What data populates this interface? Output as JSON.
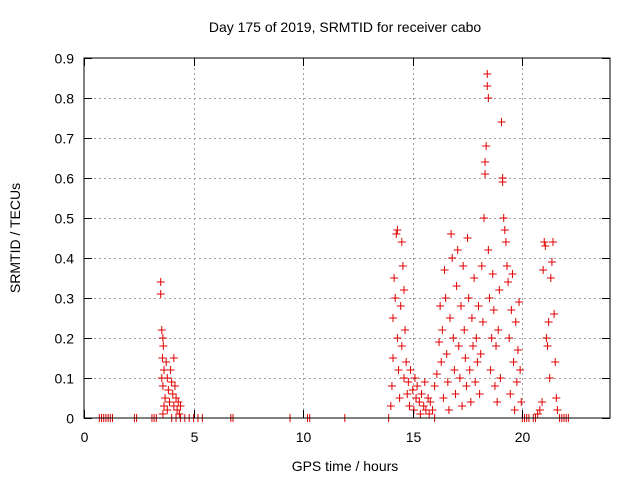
{
  "chart_data": {
    "type": "scatter",
    "title": "Day 175 of 2019, SRMTID for receiver cabo",
    "xlabel": "GPS time / hours",
    "ylabel": "SRMTID / TECUs",
    "xlim": [
      0,
      24
    ],
    "ylim": [
      0,
      0.9
    ],
    "x_ticks": [
      0,
      5,
      10,
      15,
      20
    ],
    "x_tick_labels": [
      "0",
      "5",
      "10",
      "15",
      "20"
    ],
    "y_ticks": [
      0,
      0.1,
      0.2,
      0.3,
      0.4,
      0.5,
      0.6,
      0.7,
      0.8,
      0.9
    ],
    "y_tick_labels": [
      "0",
      "0.1",
      "0.2",
      "0.3",
      "0.4",
      "0.5",
      "0.6",
      "0.7",
      "0.8",
      "0.9"
    ],
    "grid": true,
    "marker": "+",
    "marker_color": "#e00000",
    "series": [
      {
        "name": "SRMTID",
        "points": [
          [
            0.7,
            0
          ],
          [
            0.8,
            0
          ],
          [
            0.9,
            0
          ],
          [
            1.0,
            0
          ],
          [
            1.1,
            0
          ],
          [
            1.2,
            0
          ],
          [
            1.3,
            0
          ],
          [
            2.3,
            0
          ],
          [
            2.4,
            0
          ],
          [
            3.1,
            0
          ],
          [
            3.2,
            0
          ],
          [
            3.3,
            0
          ],
          [
            3.5,
            0.34
          ],
          [
            3.5,
            0.31
          ],
          [
            3.55,
            0.22
          ],
          [
            3.6,
            0.2
          ],
          [
            3.62,
            0.18
          ],
          [
            3.58,
            0.15
          ],
          [
            3.65,
            0.12
          ],
          [
            3.55,
            0.1
          ],
          [
            3.6,
            0.08
          ],
          [
            3.7,
            0.05
          ],
          [
            3.65,
            0.03
          ],
          [
            3.6,
            0.01
          ],
          [
            3.75,
            0.14
          ],
          [
            3.8,
            0.1
          ],
          [
            3.85,
            0.07
          ],
          [
            3.9,
            0.04
          ],
          [
            3.8,
            0.02
          ],
          [
            3.95,
            0.12
          ],
          [
            4.0,
            0.09
          ],
          [
            4.05,
            0.06
          ],
          [
            4.1,
            0.15
          ],
          [
            4.1,
            0.03
          ],
          [
            4.15,
            0.08
          ],
          [
            4.2,
            0.05
          ],
          [
            4.25,
            0.02
          ],
          [
            4.3,
            0.04
          ],
          [
            4.35,
            0.01
          ],
          [
            4.4,
            0.03
          ],
          [
            4.0,
            0.0
          ],
          [
            4.2,
            0.0
          ],
          [
            4.4,
            0.0
          ],
          [
            4.6,
            0
          ],
          [
            4.8,
            0
          ],
          [
            5.0,
            0
          ],
          [
            5.2,
            0
          ],
          [
            5.4,
            0
          ],
          [
            6.7,
            0
          ],
          [
            6.8,
            0
          ],
          [
            9.4,
            0
          ],
          [
            10.2,
            0
          ],
          [
            10.3,
            0
          ],
          [
            11.9,
            0
          ],
          [
            13.9,
            0
          ],
          [
            14.0,
            0.03
          ],
          [
            14.05,
            0.08
          ],
          [
            14.1,
            0.15
          ],
          [
            14.1,
            0.25
          ],
          [
            14.15,
            0.35
          ],
          [
            14.2,
            0.3
          ],
          [
            14.25,
            0.46
          ],
          [
            14.3,
            0.47
          ],
          [
            14.3,
            0.2
          ],
          [
            14.35,
            0.12
          ],
          [
            14.4,
            0.05
          ],
          [
            14.45,
            0.28
          ],
          [
            14.5,
            0.44
          ],
          [
            14.5,
            0.18
          ],
          [
            14.55,
            0.38
          ],
          [
            14.6,
            0.32
          ],
          [
            14.6,
            0.1
          ],
          [
            14.65,
            0.22
          ],
          [
            14.7,
            0.14
          ],
          [
            14.75,
            0.06
          ],
          [
            14.8,
            0.09
          ],
          [
            14.85,
            0.03
          ],
          [
            14.9,
            0.12
          ],
          [
            15.0,
            0.07
          ],
          [
            15.05,
            0.02
          ],
          [
            15.1,
            0.1
          ],
          [
            15.15,
            0.05
          ],
          [
            15.2,
            0.08
          ],
          [
            15.3,
            0.04
          ],
          [
            15.35,
            0.01
          ],
          [
            15.4,
            0.06
          ],
          [
            15.5,
            0.03
          ],
          [
            15.55,
            0.09
          ],
          [
            15.6,
            0.02
          ],
          [
            15.7,
            0.05
          ],
          [
            15.75,
            0.01
          ],
          [
            15.8,
            0.04
          ],
          [
            15.9,
            0.02
          ],
          [
            16.0,
            0.0
          ],
          [
            16.0,
            0.08
          ],
          [
            16.1,
            0.11
          ],
          [
            16.2,
            0.19
          ],
          [
            16.25,
            0.28
          ],
          [
            16.3,
            0.14
          ],
          [
            16.35,
            0.22
          ],
          [
            16.4,
            0.05
          ],
          [
            16.45,
            0.37
          ],
          [
            16.5,
            0.3
          ],
          [
            16.55,
            0.16
          ],
          [
            16.6,
            0.09
          ],
          [
            16.65,
            0.02
          ],
          [
            16.7,
            0.25
          ],
          [
            16.75,
            0.46
          ],
          [
            16.8,
            0.4
          ],
          [
            16.85,
            0.2
          ],
          [
            16.9,
            0.12
          ],
          [
            16.95,
            0.06
          ],
          [
            17.0,
            0.33
          ],
          [
            17.05,
            0.42
          ],
          [
            17.1,
            0.18
          ],
          [
            17.15,
            0.1
          ],
          [
            17.2,
            0.28
          ],
          [
            17.25,
            0.03
          ],
          [
            17.3,
            0.38
          ],
          [
            17.35,
            0.22
          ],
          [
            17.4,
            0.15
          ],
          [
            17.45,
            0.08
          ],
          [
            17.5,
            0.45
          ],
          [
            17.55,
            0.3
          ],
          [
            17.6,
            0.12
          ],
          [
            17.65,
            0.04
          ],
          [
            17.7,
            0.25
          ],
          [
            17.75,
            0.18
          ],
          [
            17.8,
            0.35
          ],
          [
            17.85,
            0.09
          ],
          [
            17.9,
            0.2
          ],
          [
            17.95,
            0.14
          ],
          [
            18.0,
            0.28
          ],
          [
            18.05,
            0.06
          ],
          [
            18.1,
            0.16
          ],
          [
            18.15,
            0.38
          ],
          [
            18.2,
            0.24
          ],
          [
            18.25,
            0.5
          ],
          [
            18.3,
            0.64
          ],
          [
            18.3,
            0.61
          ],
          [
            18.35,
            0.68
          ],
          [
            18.4,
            0.86
          ],
          [
            18.4,
            0.83
          ],
          [
            18.45,
            0.8
          ],
          [
            18.45,
            0.42
          ],
          [
            18.5,
            0.3
          ],
          [
            18.55,
            0.12
          ],
          [
            18.6,
            0.2
          ],
          [
            18.65,
            0.36
          ],
          [
            18.7,
            0.27
          ],
          [
            18.75,
            0.08
          ],
          [
            18.8,
            0.18
          ],
          [
            18.85,
            0.04
          ],
          [
            18.9,
            0.22
          ],
          [
            18.95,
            0.32
          ],
          [
            19.0,
            0.1
          ],
          [
            19.05,
            0.74
          ],
          [
            19.1,
            0.6
          ],
          [
            19.1,
            0.59
          ],
          [
            19.15,
            0.5
          ],
          [
            19.2,
            0.47
          ],
          [
            19.25,
            0.44
          ],
          [
            19.3,
            0.38
          ],
          [
            19.35,
            0.34
          ],
          [
            19.4,
            0.2
          ],
          [
            19.45,
            0.06
          ],
          [
            19.5,
            0.27
          ],
          [
            19.55,
            0.36
          ],
          [
            19.6,
            0.14
          ],
          [
            19.65,
            0.02
          ],
          [
            19.7,
            0.24
          ],
          [
            19.75,
            0.09
          ],
          [
            19.8,
            0.17
          ],
          [
            19.85,
            0.29
          ],
          [
            19.9,
            0.12
          ],
          [
            19.95,
            0.04
          ],
          [
            20.0,
            0.0
          ],
          [
            20.1,
            0
          ],
          [
            20.2,
            0
          ],
          [
            20.3,
            0
          ],
          [
            20.5,
            0
          ],
          [
            20.6,
            0
          ],
          [
            20.7,
            0.01
          ],
          [
            20.8,
            0.02
          ],
          [
            20.9,
            0.04
          ],
          [
            20.95,
            0.37
          ],
          [
            21.0,
            0.44
          ],
          [
            21.05,
            0.43
          ],
          [
            21.1,
            0.2
          ],
          [
            21.15,
            0.18
          ],
          [
            21.2,
            0.24
          ],
          [
            21.25,
            0.1
          ],
          [
            21.3,
            0.35
          ],
          [
            21.35,
            0.39
          ],
          [
            21.4,
            0.44
          ],
          [
            21.45,
            0.26
          ],
          [
            21.5,
            0.14
          ],
          [
            21.55,
            0.05
          ],
          [
            21.6,
            0.02
          ],
          [
            21.7,
            0
          ],
          [
            21.8,
            0
          ],
          [
            21.9,
            0
          ],
          [
            22.0,
            0
          ],
          [
            22.1,
            0
          ]
        ]
      }
    ]
  }
}
